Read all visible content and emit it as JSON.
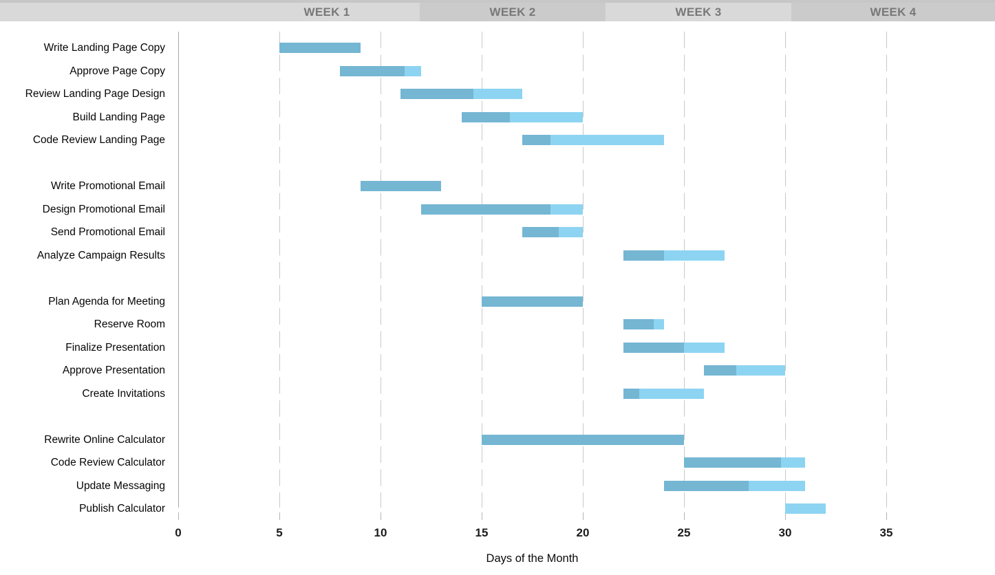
{
  "header": {
    "weeks": [
      {
        "label": "WEEK 1",
        "shade": "light"
      },
      {
        "label": "WEEK 2",
        "shade": "dark"
      },
      {
        "label": "WEEK 3",
        "shade": "light"
      },
      {
        "label": "WEEK 4",
        "shade": "dark"
      }
    ]
  },
  "chart_data": {
    "type": "bar",
    "subtype": "gantt",
    "title": "",
    "xlabel": "Days of the Month",
    "ylabel": "",
    "xlim": [
      0,
      40
    ],
    "xticks": [
      0,
      5,
      10,
      15,
      20,
      25,
      30,
      35
    ],
    "grid": "dashed-vertical",
    "colors": {
      "complete": "#75b6d3",
      "remaining": "#8dd4f2"
    },
    "bar_unit": "day of month",
    "task_groups": [
      [
        {
          "label": "Write Landing Page Copy",
          "start": 5,
          "end": 9,
          "percent_complete": 100
        },
        {
          "label": "Approve Page Copy",
          "start": 8,
          "end": 12,
          "percent_complete": 80
        },
        {
          "label": "Review Landing Page Design",
          "start": 11,
          "end": 17,
          "percent_complete": 60
        },
        {
          "label": "Build Landing Page",
          "start": 14,
          "end": 20,
          "percent_complete": 40
        },
        {
          "label": "Code Review Landing Page",
          "start": 17,
          "end": 24,
          "percent_complete": 20
        }
      ],
      [
        {
          "label": "Write Promotional Email",
          "start": 9,
          "end": 13,
          "percent_complete": 100
        },
        {
          "label": "Design Promotional Email",
          "start": 12,
          "end": 20,
          "percent_complete": 80
        },
        {
          "label": "Send Promotional Email",
          "start": 17,
          "end": 20,
          "percent_complete": 60
        },
        {
          "label": "Analyze Campaign Results",
          "start": 22,
          "end": 27,
          "percent_complete": 40
        }
      ],
      [
        {
          "label": "Plan Agenda for Meeting",
          "start": 15,
          "end": 20,
          "percent_complete": 100
        },
        {
          "label": "Reserve Room",
          "start": 22,
          "end": 24,
          "percent_complete": 75
        },
        {
          "label": "Finalize Presentation",
          "start": 22,
          "end": 27,
          "percent_complete": 60
        },
        {
          "label": "Approve Presentation",
          "start": 26,
          "end": 30,
          "percent_complete": 40
        },
        {
          "label": "Create Invitations",
          "start": 22,
          "end": 26,
          "percent_complete": 20
        }
      ],
      [
        {
          "label": "Rewrite Online Calculator",
          "start": 15,
          "end": 25,
          "percent_complete": 100
        },
        {
          "label": "Code Review Calculator",
          "start": 25,
          "end": 31,
          "percent_complete": 80
        },
        {
          "label": "Update Messaging",
          "start": 24,
          "end": 31,
          "percent_complete": 60
        },
        {
          "label": "Publish Calculator",
          "start": 30,
          "end": 32,
          "percent_complete": 0
        }
      ]
    ]
  }
}
